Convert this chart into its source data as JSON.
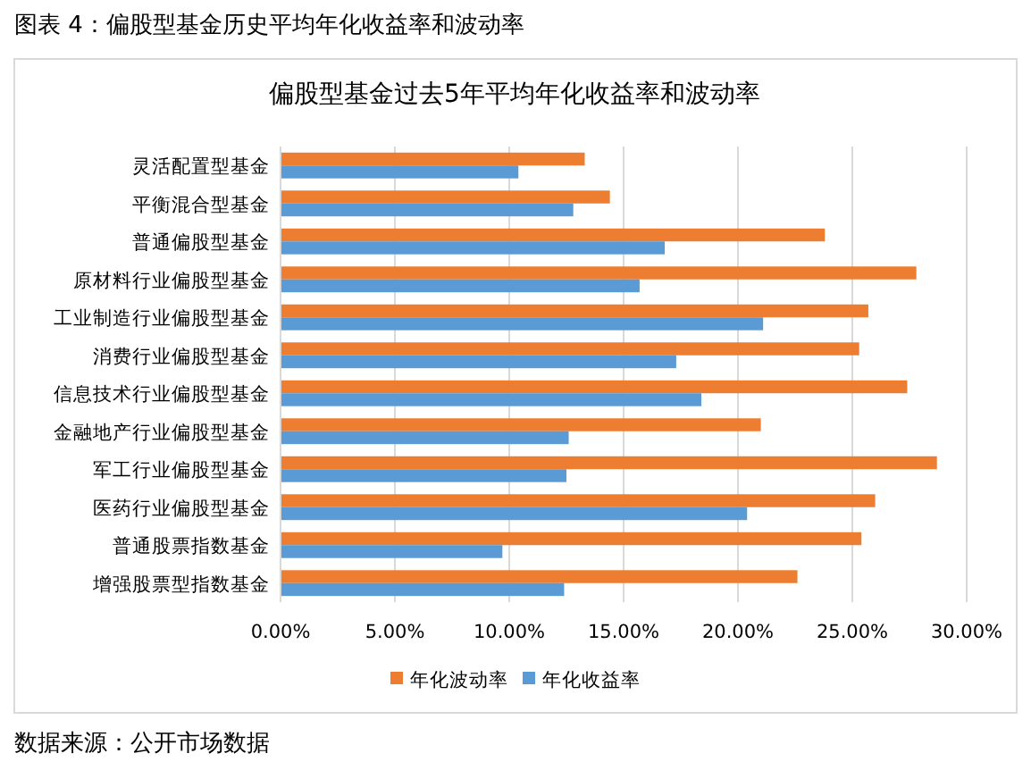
{
  "chart_data": {
    "type": "bar",
    "orientation": "horizontal",
    "title": "偏股型基金过去5年平均年化收益率和波动率",
    "annotations": [
      "图表 4：偏股型基金历史平均年化收益率和波动率",
      "数据来源：公开市场数据"
    ],
    "categories": [
      "灵活配置型基金",
      "平衡混合型基金",
      "普通偏股型基金",
      "原材料行业偏股型基金",
      "工业制造行业偏股型基金",
      "消费行业偏股型基金",
      "信息技术行业偏股型基金",
      "金融地产行业偏股型基金",
      "军工行业偏股型基金",
      "医药行业偏股型基金",
      "普通股票指数基金",
      "增强股票型指数基金"
    ],
    "series": [
      {
        "name": "年化波动率",
        "color": "#ed7d31",
        "values": [
          13.3,
          14.4,
          23.8,
          27.8,
          25.7,
          25.3,
          27.4,
          21.0,
          28.7,
          26.0,
          25.4,
          22.6
        ]
      },
      {
        "name": "年化收益率",
        "color": "#5b9bd5",
        "values": [
          10.4,
          12.8,
          16.8,
          15.7,
          21.1,
          17.3,
          18.4,
          12.6,
          12.5,
          20.4,
          9.7,
          12.4
        ]
      }
    ],
    "xlim": [
      0,
      30
    ],
    "xticks": [
      {
        "value": 0,
        "label": "0.00%"
      },
      {
        "value": 5,
        "label": "5.00%"
      },
      {
        "value": 10,
        "label": "10.00%"
      },
      {
        "value": 15,
        "label": "15.00%"
      },
      {
        "value": 20,
        "label": "20.00%"
      },
      {
        "value": 25,
        "label": "25.00%"
      },
      {
        "value": 30,
        "label": "30.00%"
      }
    ],
    "grid": "x",
    "legend": "bottom"
  }
}
